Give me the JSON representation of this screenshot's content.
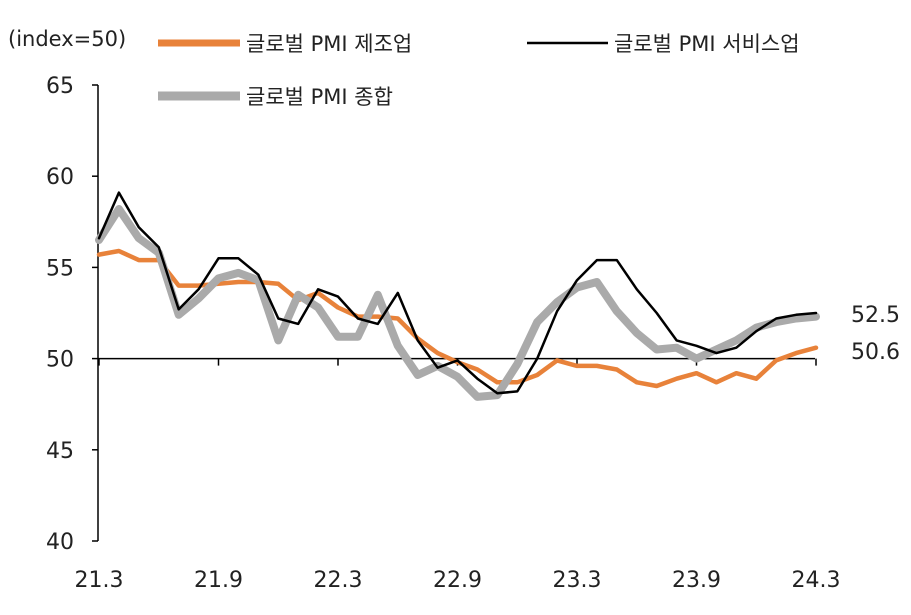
{
  "chart_data": {
    "type": "line",
    "unit_label": "(index=50)",
    "y_axis": {
      "min": 40,
      "max": 65,
      "ticks": [
        65,
        60,
        55,
        50,
        45,
        40
      ]
    },
    "x_axis": {
      "start_month": "2021-03",
      "tick_labels": [
        "21.3",
        "21.9",
        "22.3",
        "22.9",
        "23.3",
        "23.9",
        "24.3"
      ]
    },
    "x": [
      "21.3",
      "21.4",
      "21.5",
      "21.6",
      "21.7",
      "21.8",
      "21.9",
      "21.10",
      "21.11",
      "21.12",
      "22.1",
      "22.2",
      "22.3",
      "22.4",
      "22.5",
      "22.6",
      "22.7",
      "22.8",
      "22.9",
      "22.10",
      "22.11",
      "22.12",
      "23.1",
      "23.2",
      "23.3",
      "23.4",
      "23.5",
      "23.6",
      "23.7",
      "23.8",
      "23.9",
      "23.10",
      "23.11",
      "23.12",
      "24.1",
      "24.2",
      "24.3"
    ],
    "baseline": 50,
    "series": [
      {
        "name": "글로벌 PMI 제조업",
        "color": "#E8823A",
        "values": [
          55.7,
          55.9,
          55.4,
          55.4,
          54.0,
          54.0,
          54.1,
          54.2,
          54.2,
          54.1,
          53.2,
          53.6,
          52.8,
          52.3,
          52.3,
          52.2,
          51.1,
          50.3,
          49.8,
          49.4,
          48.7,
          48.7,
          49.1,
          49.9,
          49.6,
          49.6,
          49.4,
          48.7,
          48.5,
          48.9,
          49.2,
          48.7,
          49.2,
          48.9,
          49.9,
          50.3,
          50.6
        ]
      },
      {
        "name": "글로벌 PMI 서비스업",
        "color": "#000000",
        "values": [
          56.6,
          59.1,
          57.2,
          56.1,
          52.7,
          53.8,
          55.5,
          55.5,
          54.6,
          52.2,
          51.9,
          53.8,
          53.4,
          52.2,
          51.9,
          53.6,
          51.0,
          49.5,
          49.9,
          48.9,
          48.1,
          48.2,
          50.0,
          52.6,
          54.3,
          55.4,
          55.4,
          53.8,
          52.5,
          51.0,
          50.7,
          50.3,
          50.6,
          51.5,
          52.2,
          52.4,
          52.5
        ]
      },
      {
        "name": "글로벌 PMI 종합",
        "color": "#AAAAAA",
        "values": [
          56.5,
          58.2,
          56.6,
          55.8,
          52.4,
          53.3,
          54.4,
          54.7,
          54.3,
          51.0,
          53.5,
          52.8,
          51.2,
          51.2,
          53.5,
          50.7,
          49.1,
          49.6,
          49.0,
          47.9,
          48.0,
          49.7,
          52.0,
          53.1,
          53.9,
          54.2,
          52.6,
          51.4,
          50.5,
          50.6,
          50.0,
          50.5,
          51.0,
          51.7,
          52.0,
          52.2,
          52.3
        ]
      }
    ],
    "end_labels": [
      "52.5",
      "50.6"
    ],
    "legend": {
      "placement": "top"
    }
  }
}
